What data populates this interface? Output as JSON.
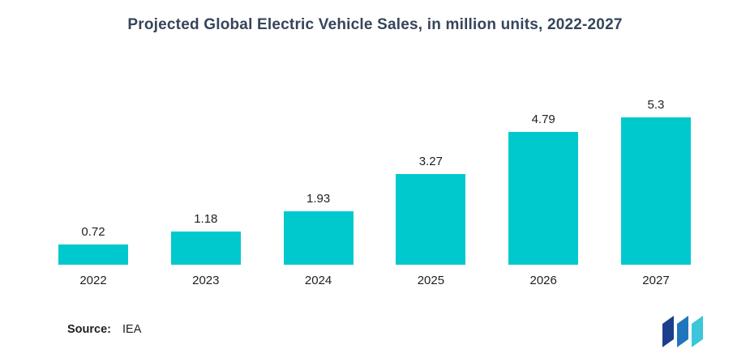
{
  "title": "Projected Global Electric Vehicle Sales, in million units, 2022-2027",
  "chart_data": {
    "type": "bar",
    "categories": [
      "2022",
      "2023",
      "2024",
      "2025",
      "2026",
      "2027"
    ],
    "values": [
      0.72,
      1.18,
      1.93,
      3.27,
      4.79,
      5.3
    ],
    "value_labels": [
      "0.72",
      "1.18",
      "1.93",
      "3.27",
      "4.79",
      "5.3"
    ],
    "title": "Projected Global Electric Vehicle Sales, in million units, 2022-2027",
    "xlabel": "",
    "ylabel": "",
    "ylim": [
      0,
      5.5
    ],
    "grid": false,
    "legend": false,
    "axis_lines": false
  },
  "source": {
    "label": "Source:",
    "value": "IEA"
  },
  "logo": {
    "name": "brand-logo"
  },
  "colors": {
    "bar": "#00C9CE",
    "title": "#36455A",
    "text": "#1f1f1f",
    "logo_navy": "#1B3F8C",
    "logo_blue": "#2076BC",
    "logo_teal": "#3BC6D9"
  }
}
